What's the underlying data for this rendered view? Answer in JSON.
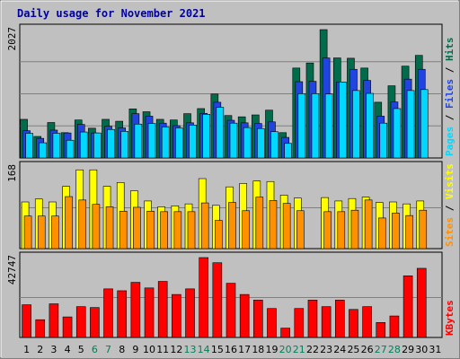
{
  "chart_data": {
    "type": "bar",
    "title": "Daily usage for November 2021",
    "categories": [
      "1",
      "2",
      "3",
      "4",
      "5",
      "6",
      "7",
      "8",
      "9",
      "10",
      "11",
      "12",
      "13",
      "14",
      "15",
      "16",
      "17",
      "18",
      "19",
      "20",
      "21",
      "22",
      "23",
      "24",
      "25",
      "26",
      "27",
      "28",
      "29",
      "30",
      "31"
    ],
    "weekend_days": [
      "6",
      "7",
      "13",
      "14",
      "20",
      "21",
      "27",
      "28"
    ],
    "panels": [
      {
        "id": "top",
        "ymax_label": "2027",
        "ylim": [
          0,
          2027
        ],
        "legend": [
          "Pages",
          "Files",
          "Hits"
        ],
        "series": [
          {
            "name": "Hits",
            "color": "#006c4b",
            "values": [
              610,
              340,
              560,
              400,
              600,
              470,
              610,
              580,
              775,
              730,
              610,
              600,
              700,
              780,
              1010,
              670,
              650,
              680,
              755,
              400,
              1420,
              1500,
              2027,
              1580,
              1575,
              1420,
              880,
              1140,
              1450,
              1620,
              0
            ]
          },
          {
            "name": "Files",
            "color": "#2144e0",
            "values": [
              430,
              310,
              440,
              395,
              530,
              395,
              500,
              475,
              700,
              660,
              550,
              510,
              555,
              705,
              880,
              595,
              555,
              545,
              570,
              325,
              1205,
              1210,
              1580,
              1200,
              1400,
              1225,
              660,
              885,
              1245,
              1400,
              0
            ]
          },
          {
            "name": "Pages",
            "color": "#00d8ff",
            "values": [
              390,
              240,
              390,
              280,
              410,
              395,
              450,
              420,
              535,
              545,
              490,
              475,
              520,
              690,
              800,
              550,
              480,
              465,
              415,
              230,
              1015,
              1015,
              1010,
              1200,
              1065,
              1020,
              550,
              780,
              1065,
              1080,
              0
            ]
          }
        ]
      },
      {
        "id": "mid",
        "ymax_label": "168",
        "ylim": [
          0,
          168
        ],
        "legend": [
          "Sites",
          "Visits"
        ],
        "series": [
          {
            "name": "Visits",
            "color": "#ffff00",
            "values": [
              96,
              102,
              96,
              128,
              162,
              162,
              128,
              136,
              119,
              98,
              86,
              88,
              92,
              144,
              89,
              127,
              134,
              139,
              138,
              110,
              104,
              0,
              105,
              98,
              103,
              106,
              95,
              96,
              92,
              98,
              0
            ]
          },
          {
            "name": "Sites",
            "color": "#ff9000",
            "values": [
              67,
              67,
              67,
              107,
              100,
              91,
              86,
              77,
              85,
              77,
              76,
              76,
              76,
              94,
              58,
              95,
              78,
              106,
              99,
              93,
              78,
              0,
              76,
              76,
              79,
              100,
              63,
              73,
              68,
              79,
              0
            ]
          }
        ]
      },
      {
        "id": "bot",
        "ymax_label": "42747",
        "ylim": [
          0,
          42747
        ],
        "legend": [
          "KBytes"
        ],
        "series": [
          {
            "name": "KBytes",
            "color": "#ff0000",
            "values": [
              17500,
              9500,
              18000,
              11000,
              16500,
              16000,
              26000,
              25000,
              29500,
              26500,
              30000,
              23000,
              26000,
              42747,
              40000,
              29000,
              23000,
              20000,
              15500,
              5000,
              15500,
              20000,
              16500,
              20000,
              15000,
              16500,
              8000,
              11500,
              33000,
              37000,
              0
            ]
          }
        ]
      }
    ]
  }
}
